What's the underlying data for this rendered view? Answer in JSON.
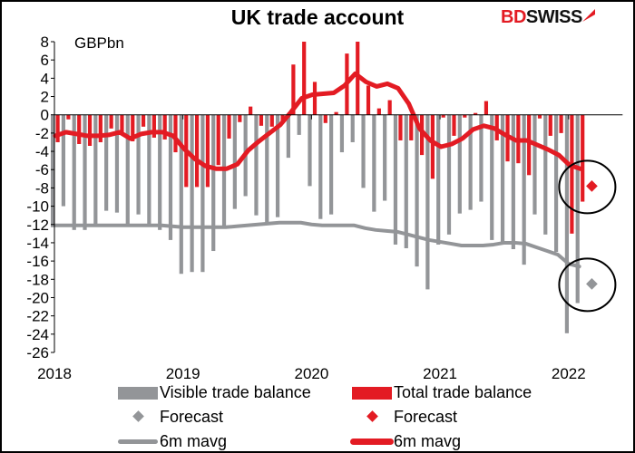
{
  "chart_data": {
    "type": "bar",
    "title": "UK trade account",
    "unit_label": "GBPbn",
    "brand": "BDSWISS",
    "brand_parts": [
      "BD",
      "SWISS"
    ],
    "ylim": [
      -26,
      8
    ],
    "yticks": [
      8,
      6,
      4,
      2,
      0,
      -2,
      -4,
      -6,
      -8,
      -10,
      -12,
      -14,
      -16,
      -18,
      -20,
      -22,
      -24,
      -26
    ],
    "xticks": [
      "2018",
      "2019",
      "2020",
      "2021",
      "2022"
    ],
    "x_start": "2018-01",
    "x_end": "2022-02",
    "grid": false,
    "legend_placement": "bottom",
    "colors": {
      "visible": "#939598",
      "total": "#e31b23"
    },
    "series": [
      {
        "name": "Visible trade balance",
        "kind": "bar",
        "color": "#939598",
        "values": [
          -12.3,
          -10.0,
          -12.6,
          -12.6,
          -12.2,
          -10.5,
          -10.7,
          -12.2,
          -10.9,
          -12.2,
          -12.6,
          -13.7,
          -17.4,
          -17.2,
          -17.2,
          -14.9,
          -12.2,
          -10.3,
          -8.9,
          -11.0,
          -12.0,
          -11.2,
          -4.7,
          -2.2,
          -7.8,
          -11.4,
          -10.9,
          -4.1,
          -3.0,
          -8.0,
          -10.6,
          -9.4,
          -14.2,
          -14.6,
          -16.6,
          -19.1,
          -14.2,
          -13.1,
          -10.8,
          -10.4,
          -9.5,
          -13.7,
          -13.9,
          -14.7,
          -16.4,
          -10.9,
          -13.1,
          -15.0,
          -23.9,
          -20.6
        ]
      },
      {
        "name": "Total trade balance",
        "kind": "bar",
        "color": "#e31b23",
        "values": [
          -3.0,
          -0.5,
          -3.2,
          -3.4,
          -3.0,
          -1.5,
          -1.9,
          -2.9,
          -1.3,
          -2.5,
          -2.7,
          -4.1,
          -7.9,
          -7.9,
          -7.9,
          -5.5,
          -2.6,
          -0.8,
          0.9,
          -1.2,
          -1.3,
          -0.8,
          5.5,
          8.0,
          3.6,
          -0.9,
          0.3,
          6.7,
          8.0,
          3.2,
          0.7,
          1.6,
          -2.8,
          -2.8,
          -4.4,
          -7.0,
          -0.3,
          -2.3,
          -0.3,
          0.2,
          1.5,
          -2.8,
          -5.1,
          -5.3,
          -6.6,
          -0.4,
          -2.3,
          -2.0,
          -13.0,
          -9.5
        ]
      },
      {
        "name": "Forecast",
        "kind": "point",
        "color": "#939598",
        "x": "2022-03",
        "value": -18.5
      },
      {
        "name": "Forecast",
        "kind": "point",
        "color": "#e31b23",
        "x": "2022-03",
        "value": -7.8
      },
      {
        "name": "6m mavg",
        "kind": "line",
        "color": "#939598",
        "values": [
          -12.1,
          -12.1,
          -12.1,
          -12.1,
          -12.1,
          -12.1,
          -12.1,
          -12.1,
          -12.1,
          -12.1,
          -12.1,
          -12.2,
          -12.3,
          -12.3,
          -12.3,
          -12.3,
          -12.3,
          -12.2,
          -12.1,
          -12.0,
          -11.9,
          -11.8,
          -11.8,
          -11.8,
          -12.0,
          -12.1,
          -12.1,
          -12.1,
          -12.1,
          -12.4,
          -12.6,
          -12.7,
          -12.8,
          -13.1,
          -13.4,
          -13.7,
          -13.9,
          -14.1,
          -14.3,
          -14.3,
          -14.3,
          -14.2,
          -14.0,
          -14.0,
          -14.1,
          -14.5,
          -14.9,
          -15.3,
          -16.3,
          -16.6
        ]
      },
      {
        "name": "6m mavg",
        "kind": "line",
        "color": "#e31b23",
        "values": [
          -2.3,
          -1.9,
          -2.1,
          -2.3,
          -2.3,
          -2.2,
          -1.9,
          -2.6,
          -2.1,
          -1.9,
          -1.9,
          -2.3,
          -3.7,
          -4.8,
          -5.6,
          -5.9,
          -5.9,
          -5.4,
          -3.9,
          -2.9,
          -2.0,
          -1.1,
          0.3,
          1.8,
          2.2,
          2.3,
          2.4,
          3.2,
          4.5,
          3.6,
          3.1,
          3.4,
          2.9,
          1.2,
          -1.5,
          -2.8,
          -3.5,
          -3.2,
          -2.6,
          -1.6,
          -1.2,
          -1.5,
          -2.2,
          -2.8,
          -2.8,
          -3.3,
          -3.8,
          -4.4,
          -5.5,
          -5.9
        ]
      }
    ],
    "legend": [
      "Visible trade balance",
      "Total trade balance",
      "Forecast",
      "Forecast",
      "6m mavg",
      "6m mavg"
    ]
  }
}
